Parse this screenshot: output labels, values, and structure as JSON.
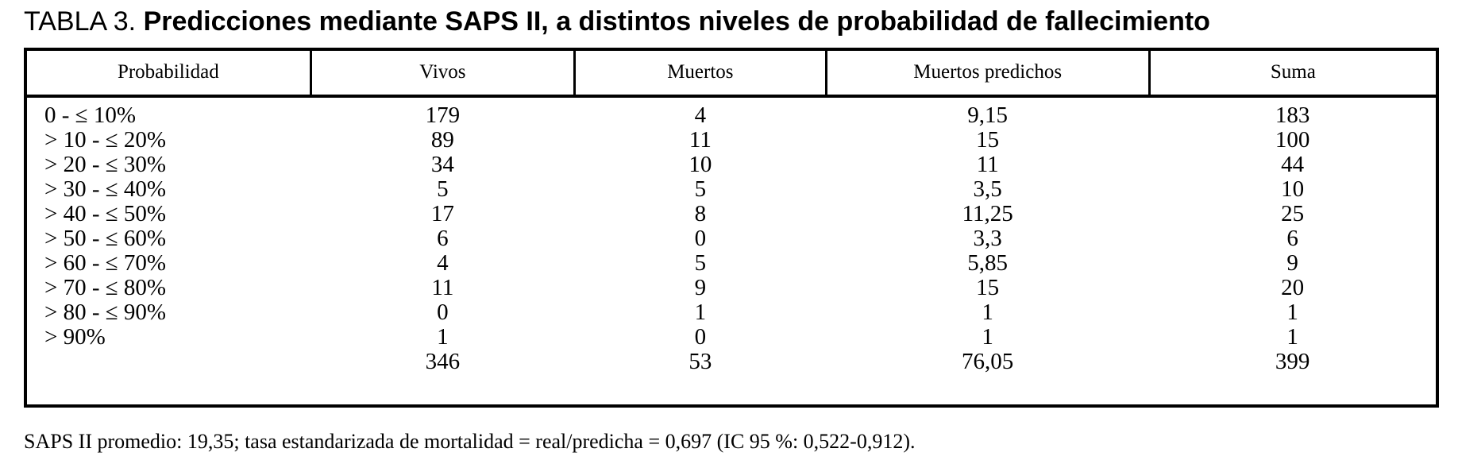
{
  "title": {
    "prefix": "TABLA 3. ",
    "main": "Predicciones mediante SAPS II, a distintos niveles de probabilidad de fallecimiento"
  },
  "table": {
    "columns": [
      "Probabilidad",
      "Vivos",
      "Muertos",
      "Muertos predichos",
      "Suma"
    ],
    "rows": [
      [
        "0 - ≤ 10%",
        "179",
        "4",
        "9,15",
        "183"
      ],
      [
        "> 10 - ≤ 20%",
        "89",
        "11",
        "15",
        "100"
      ],
      [
        "> 20 - ≤ 30%",
        "34",
        "10",
        "11",
        "44"
      ],
      [
        "> 30 - ≤ 40%",
        "5",
        "5",
        "3,5",
        "10"
      ],
      [
        "> 40 - ≤ 50%",
        "17",
        "8",
        "11,25",
        "25"
      ],
      [
        "> 50 - ≤ 60%",
        "6",
        "0",
        "3,3",
        "6"
      ],
      [
        "> 60 - ≤ 70%",
        "4",
        "5",
        "5,85",
        "9"
      ],
      [
        "> 70 - ≤ 80%",
        "11",
        "9",
        "15",
        "20"
      ],
      [
        "> 80 - ≤ 90%",
        "0",
        "1",
        "1",
        "1"
      ],
      [
        "> 90%",
        "1",
        "0",
        "1",
        "1"
      ]
    ],
    "totals_row": [
      "",
      "346",
      "53",
      "76,05",
      "399"
    ],
    "border_color": "#000000"
  },
  "footnote": "SAPS II promedio: 19,35; tasa estandarizada de mortalidad = real/predicha = 0,697 (IC 95 %: 0,522-0,912)."
}
